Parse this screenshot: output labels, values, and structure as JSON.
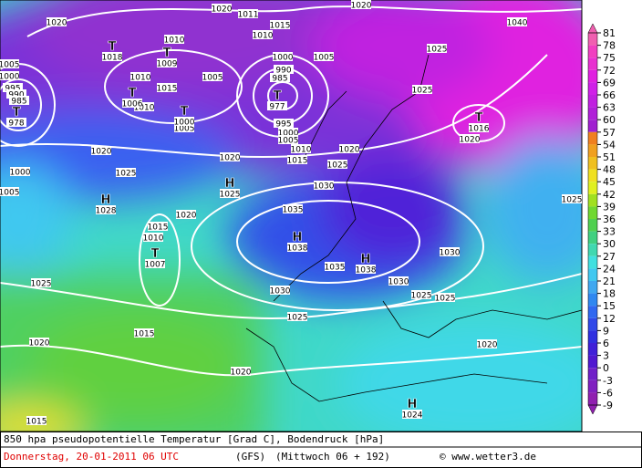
{
  "caption": {
    "line1": "850 hpa pseudopotentielle Temperatur [Grad C], Bodendruck [hPa]",
    "date": "Donnerstag, 20-01-2011  06 UTC",
    "model": "(GFS)",
    "run": "(Mittwoch 06 + 192)",
    "credit": "© www.wetter3.de"
  },
  "colorbar": {
    "lim": [
      -9,
      81
    ],
    "ticks": [
      81,
      78,
      75,
      72,
      69,
      66,
      63,
      60,
      57,
      54,
      51,
      48,
      45,
      42,
      39,
      36,
      33,
      30,
      27,
      24,
      21,
      18,
      15,
      12,
      9,
      6,
      3,
      0,
      -3,
      -6,
      -9
    ],
    "colors": [
      "#f060b0",
      "#f040c0",
      "#e830d0",
      "#e020e0",
      "#d020e8",
      "#c020e0",
      "#b020d8",
      "#a020d0",
      "#f08020",
      "#f0a020",
      "#f0c020",
      "#f0e020",
      "#e0f020",
      "#a0e020",
      "#70d830",
      "#50d050",
      "#40d080",
      "#40d8b0",
      "#40e0e0",
      "#40c8f0",
      "#40a8f0",
      "#3088f0",
      "#3068f0",
      "#3048e8",
      "#3030e0",
      "#4020d8",
      "#5018d0",
      "#7020c8",
      "#8020c0",
      "#9020b0"
    ]
  },
  "pressure_labels": [
    1020,
    1010,
    1015,
    1020,
    1040,
    1010,
    1020,
    1011,
    1005,
    1000,
    995,
    990,
    985,
    1010,
    1015,
    1005,
    1000,
    990,
    985,
    1005,
    1025,
    1025,
    1010,
    995,
    1000,
    1005,
    1010,
    1015,
    1020,
    1020,
    1020,
    1025,
    1000,
    1025,
    1030,
    1035,
    1020,
    1015,
    1010,
    1020,
    1025,
    1030,
    1035,
    1030,
    1030,
    1025,
    1025,
    1025,
    1025,
    1015,
    1020,
    1020,
    1020,
    1015,
    1005,
    1005
  ],
  "systems": [
    {
      "symbol": "T",
      "value": 1018
    },
    {
      "symbol": "T",
      "value": 1009
    },
    {
      "symbol": "T",
      "value": 1006
    },
    {
      "symbol": "T",
      "value": 1000
    },
    {
      "symbol": "T",
      "value": 977
    },
    {
      "symbol": "T",
      "value": 978
    },
    {
      "symbol": "T",
      "value": 1016
    },
    {
      "symbol": "H",
      "value": 1025
    },
    {
      "symbol": "H",
      "value": 1028
    },
    {
      "symbol": "T",
      "value": 1007
    },
    {
      "symbol": "H",
      "value": 1038
    },
    {
      "symbol": "H",
      "value": 1038
    },
    {
      "symbol": "H",
      "value": 1024
    }
  ]
}
